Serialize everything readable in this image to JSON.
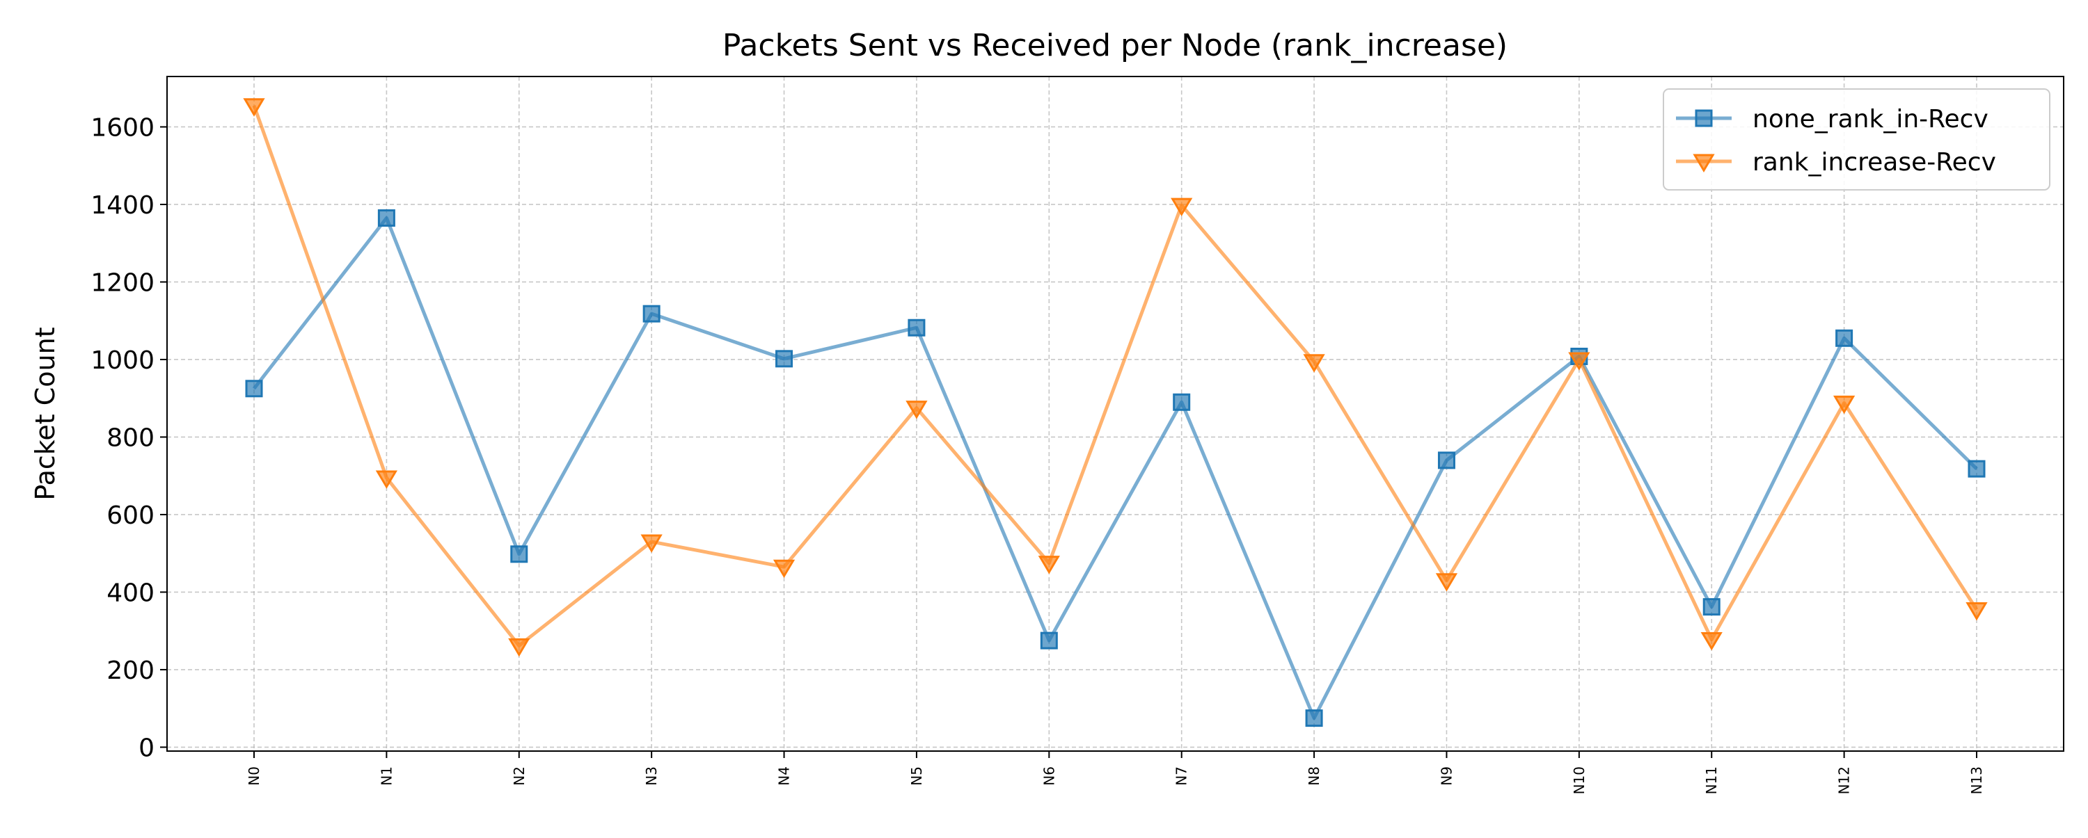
{
  "chart_data": {
    "type": "line",
    "title": "Packets Sent vs Received per Node (rank_increase)",
    "xlabel": "",
    "ylabel": "Packet Count",
    "categories": [
      "N0",
      "N1",
      "N2",
      "N3",
      "N4",
      "N5",
      "N6",
      "N7",
      "N8",
      "N9",
      "N10",
      "N11",
      "N12",
      "N13"
    ],
    "ylim": [
      -10,
      1730
    ],
    "yticks": [
      0,
      200,
      400,
      600,
      800,
      1000,
      1200,
      1400,
      1600
    ],
    "grid": true,
    "legend_position": "top-right",
    "series": [
      {
        "name": "none_rank_in-Recv",
        "color": "#1f77b4",
        "marker": "square",
        "values": [
          925,
          1365,
          498,
          1118,
          1002,
          1082,
          275,
          890,
          75,
          740,
          1008,
          362,
          1055,
          718
        ]
      },
      {
        "name": "rank_increase-Recv",
        "color": "#ff7f0e",
        "marker": "triangle-down",
        "values": [
          1655,
          695,
          262,
          530,
          465,
          875,
          475,
          1398,
          995,
          430,
          1000,
          278,
          888,
          355
        ]
      }
    ]
  }
}
